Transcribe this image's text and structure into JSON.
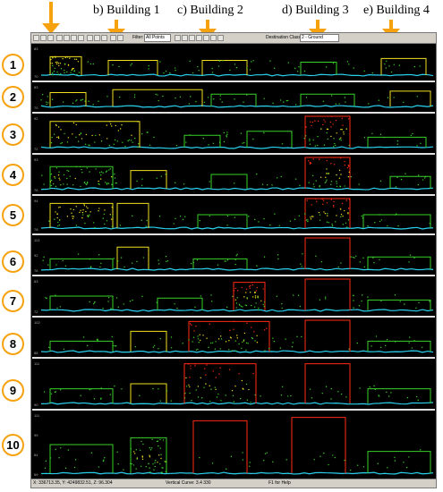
{
  "labels": {
    "building1": "b) Building 1",
    "building2": "c) Building 2",
    "building3": "d) Building 3",
    "building4": "e) Building 4"
  },
  "toolbar": {
    "filter_label": "Filter:",
    "filter_value": "All Points",
    "destination_label": "Destination Class:",
    "destination_value": "2 - Ground"
  },
  "status": {
    "coords": "X: 336713.35, Y: 4249832.51, Z: 96.304",
    "vertical_curve": "Vertical Curve: 3.4 330",
    "help": "F1 for Help"
  },
  "profiles": [
    {
      "number": "1",
      "ticks": [
        "83",
        "70"
      ]
    },
    {
      "number": "2",
      "ticks": [
        "83",
        "70"
      ]
    },
    {
      "number": "3",
      "ticks": [
        "92",
        "72"
      ]
    },
    {
      "number": "4",
      "ticks": [
        "93",
        "76"
      ]
    },
    {
      "number": "5",
      "ticks": [
        "94",
        "78"
      ]
    },
    {
      "number": "6",
      "ticks": [
        "113",
        "92",
        "76"
      ]
    },
    {
      "number": "7",
      "ticks": [
        "83",
        "72"
      ]
    },
    {
      "number": "8",
      "ticks": [
        "102",
        "88"
      ]
    },
    {
      "number": "9",
      "ticks": [
        "111",
        "90"
      ]
    },
    {
      "number": "10",
      "ticks": [
        "111",
        "99",
        "84",
        "69"
      ]
    }
  ],
  "colors": {
    "arrow": "#f6a20e",
    "ground": "#2ad2f0",
    "low": "#39d12a",
    "mid": "#f0e020",
    "high": "#ff2a14"
  }
}
